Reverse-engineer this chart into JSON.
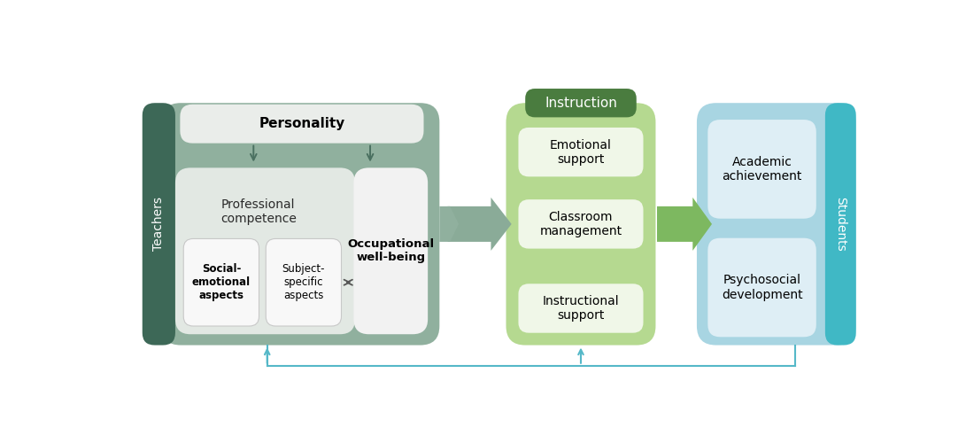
{
  "bg_color": "#ffffff",
  "teachers_box": {
    "color": "#3d6857",
    "text": "Teachers",
    "text_color": "#ffffff"
  },
  "students_box": {
    "color": "#40b8c5",
    "text": "Students",
    "text_color": "#ffffff"
  },
  "outer_green_box": {
    "color": "#90b09e"
  },
  "personality_box": {
    "color": "#eaedea",
    "text": "Personality"
  },
  "prof_comp_box": {
    "color": "#e2e8e3",
    "text": "Professional\ncompetence"
  },
  "social_emotional_box": {
    "color": "#f8f8f8",
    "text": "Social-\nemotional\naspects"
  },
  "subject_specific_box": {
    "color": "#f8f8f8",
    "text": "Subject-\nspecific\naspects"
  },
  "occupational_box": {
    "color": "#f2f2f2",
    "text": "Occupational\nwell-being"
  },
  "instruction_label_box": {
    "color": "#4a7c3f",
    "text": "Instruction",
    "text_color": "#ffffff"
  },
  "instruction_outer": {
    "color": "#b5d990"
  },
  "emotional_support_box": {
    "color": "#f0f7e8",
    "text": "Emotional\nsupport"
  },
  "classroom_mgmt_box": {
    "color": "#f0f7e8",
    "text": "Classroom\nmanagement"
  },
  "instructional_support_box": {
    "color": "#f0f7e8",
    "text": "Instructional\nsupport"
  },
  "students_outer": {
    "color": "#a8d5e2"
  },
  "academic_box": {
    "color": "#deeef5",
    "text": "Academic\nachievement"
  },
  "psychosocial_box": {
    "color": "#deeef5",
    "text": "Psychosocial\ndevelopment"
  },
  "arrow_gray": "#8aab98",
  "arrow_green": "#7db860",
  "arrow_teal": "#55b8c8",
  "dark_arrow": "#4a7060"
}
